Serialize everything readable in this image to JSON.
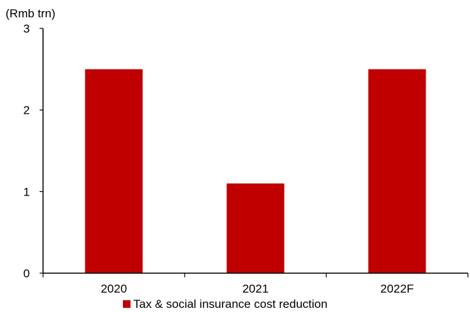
{
  "chart_data": {
    "type": "bar",
    "unit_label": "(Rmb trn)",
    "categories": [
      "2020",
      "2021",
      "2022F"
    ],
    "series": [
      {
        "name": "Tax & social insurance cost reduction",
        "values": [
          2.5,
          1.1,
          2.5
        ],
        "color": "#C00000"
      }
    ],
    "ylim": [
      0,
      3
    ],
    "yticks": [
      "0",
      "1",
      "2",
      "3"
    ],
    "grid": false,
    "legend_position": "bottom-center"
  }
}
